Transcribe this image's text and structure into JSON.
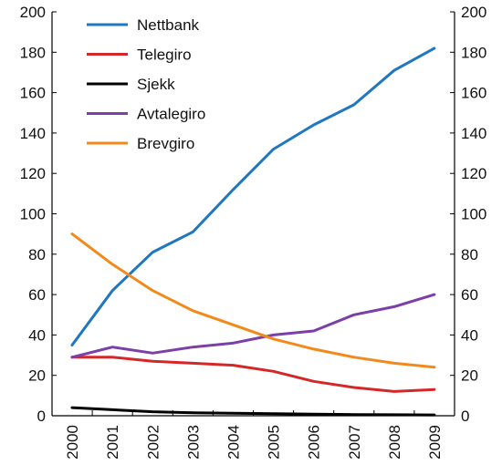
{
  "chart_data": {
    "type": "line",
    "title": "",
    "xlabel": "",
    "ylabel": "",
    "categories": [
      "2000",
      "2001",
      "2002",
      "2003",
      "2004",
      "2005",
      "2006",
      "2007",
      "2008",
      "2009"
    ],
    "ylim": [
      0,
      200
    ],
    "yticks": [
      "0",
      "20",
      "40",
      "60",
      "80",
      "100",
      "120",
      "140",
      "160",
      "180",
      "200"
    ],
    "y_axis_sides": [
      "left",
      "right"
    ],
    "x_tick_rotation": "vertical",
    "grid": false,
    "legend_position": "top-left",
    "series": [
      {
        "name": "Nettbank",
        "color": "#1f77c0",
        "values": [
          35,
          62,
          81,
          91,
          112,
          132,
          144,
          154,
          171,
          182
        ]
      },
      {
        "name": "Telegiro",
        "color": "#d62728",
        "values": [
          29,
          29,
          27,
          26,
          25,
          22,
          17,
          14,
          12,
          13
        ]
      },
      {
        "name": "Sjekk",
        "color": "#000000",
        "values": [
          4,
          3,
          2,
          1.5,
          1.2,
          1,
          0.8,
          0.6,
          0.5,
          0.4
        ]
      },
      {
        "name": "Avtalegiro",
        "color": "#7b3fa8",
        "values": [
          29,
          34,
          31,
          34,
          36,
          40,
          42,
          50,
          54,
          60
        ]
      },
      {
        "name": "Brevgiro",
        "color": "#f08a1c",
        "values": [
          90,
          75,
          62,
          52,
          45,
          38,
          33,
          29,
          26,
          24
        ]
      }
    ]
  }
}
